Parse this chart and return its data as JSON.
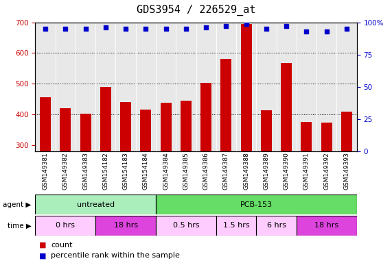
{
  "title": "GDS3954 / 226529_at",
  "samples": [
    "GSM149381",
    "GSM149382",
    "GSM149383",
    "GSM154182",
    "GSM154183",
    "GSM154184",
    "GSM149384",
    "GSM149385",
    "GSM149386",
    "GSM149387",
    "GSM149388",
    "GSM149389",
    "GSM149390",
    "GSM149391",
    "GSM149392",
    "GSM149393"
  ],
  "counts": [
    455,
    420,
    403,
    490,
    440,
    415,
    437,
    445,
    502,
    582,
    695,
    413,
    568,
    375,
    373,
    410
  ],
  "percentile_ranks": [
    95,
    95,
    95,
    96,
    95,
    95,
    95,
    95,
    96,
    97,
    99,
    95,
    97,
    93,
    93,
    95
  ],
  "bar_color": "#cc0000",
  "dot_color": "#0000cc",
  "ylim_left": [
    280,
    700
  ],
  "ylim_right": [
    0,
    100
  ],
  "yticks_left": [
    300,
    400,
    500,
    600,
    700
  ],
  "yticks_right": [
    0,
    25,
    50,
    75,
    100
  ],
  "grid_values": [
    400,
    500,
    600
  ],
  "agent_groups": [
    {
      "label": "untreated",
      "start": 0,
      "end": 5,
      "color": "#aaeebb"
    },
    {
      "label": "PCB-153",
      "start": 6,
      "end": 15,
      "color": "#66dd66"
    }
  ],
  "time_groups": [
    {
      "label": "0 hrs",
      "start": 0,
      "end": 2,
      "color": "#ffccff"
    },
    {
      "label": "18 hrs",
      "start": 3,
      "end": 5,
      "color": "#dd44dd"
    },
    {
      "label": "0.5 hrs",
      "start": 6,
      "end": 8,
      "color": "#ffccff"
    },
    {
      "label": "1.5 hrs",
      "start": 9,
      "end": 10,
      "color": "#ffccff"
    },
    {
      "label": "6 hrs",
      "start": 11,
      "end": 12,
      "color": "#ffccff"
    },
    {
      "label": "18 hrs",
      "start": 13,
      "end": 15,
      "color": "#dd44dd"
    }
  ],
  "legend_count_color": "#cc0000",
  "legend_dot_color": "#0000cc",
  "bg_color": "#ffffff",
  "plot_bg_color": "#e8e8e8",
  "label_color_left": "#cc0000",
  "label_color_right": "#0000cc",
  "bar_width": 0.55,
  "tick_label_fontsize": 6.5,
  "title_fontsize": 11
}
